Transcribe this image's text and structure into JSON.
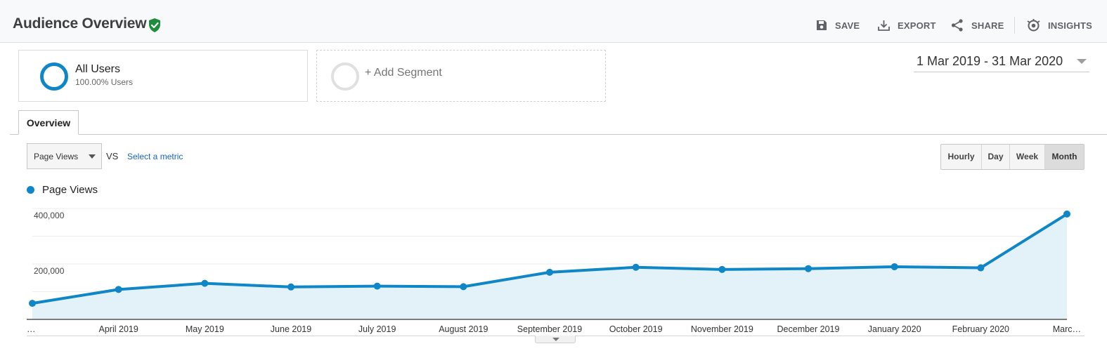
{
  "header": {
    "title": "Audience Overview",
    "actions": [
      {
        "label": "SAVE",
        "icon": "save-icon"
      },
      {
        "label": "EXPORT",
        "icon": "download-icon"
      },
      {
        "label": "SHARE",
        "icon": "share-icon"
      },
      {
        "label": "INSIGHTS",
        "icon": "insights-icon"
      }
    ]
  },
  "segments": {
    "all_users": {
      "name": "All Users",
      "sub": "100.00% Users"
    },
    "add_segment": {
      "label": "+ Add Segment"
    }
  },
  "date_range": "1 Mar 2019 - 31 Mar 2020",
  "tabs": [
    {
      "label": "Overview"
    }
  ],
  "controls": {
    "metric": "Page Views",
    "vs": "VS",
    "select_metric": "Select a metric",
    "granularity": [
      "Hourly",
      "Day",
      "Week",
      "Month"
    ],
    "active_granularity": "Month"
  },
  "legend": {
    "label": "Page Views"
  },
  "colors": {
    "accent": "#0f86c6",
    "area": "#e3f1f9",
    "link": "#1565c0"
  },
  "chart_data": {
    "type": "area",
    "categories": [
      "…",
      "April 2019",
      "May 2019",
      "June 2019",
      "July 2019",
      "August 2019",
      "September 2019",
      "October 2019",
      "November 2019",
      "December 2019",
      "January 2020",
      "February 2020",
      "Marc…"
    ],
    "series": [
      {
        "name": "Page Views",
        "values": [
          58000,
          108000,
          130000,
          117000,
          120000,
          118000,
          170000,
          188000,
          180000,
          183000,
          190000,
          186000,
          380000
        ]
      }
    ],
    "y_ticks": [
      {
        "value": 400000,
        "label": "400,000"
      },
      {
        "value": 200000,
        "label": "200,000"
      }
    ],
    "ylim": [
      0,
      400000
    ],
    "grid": true
  }
}
